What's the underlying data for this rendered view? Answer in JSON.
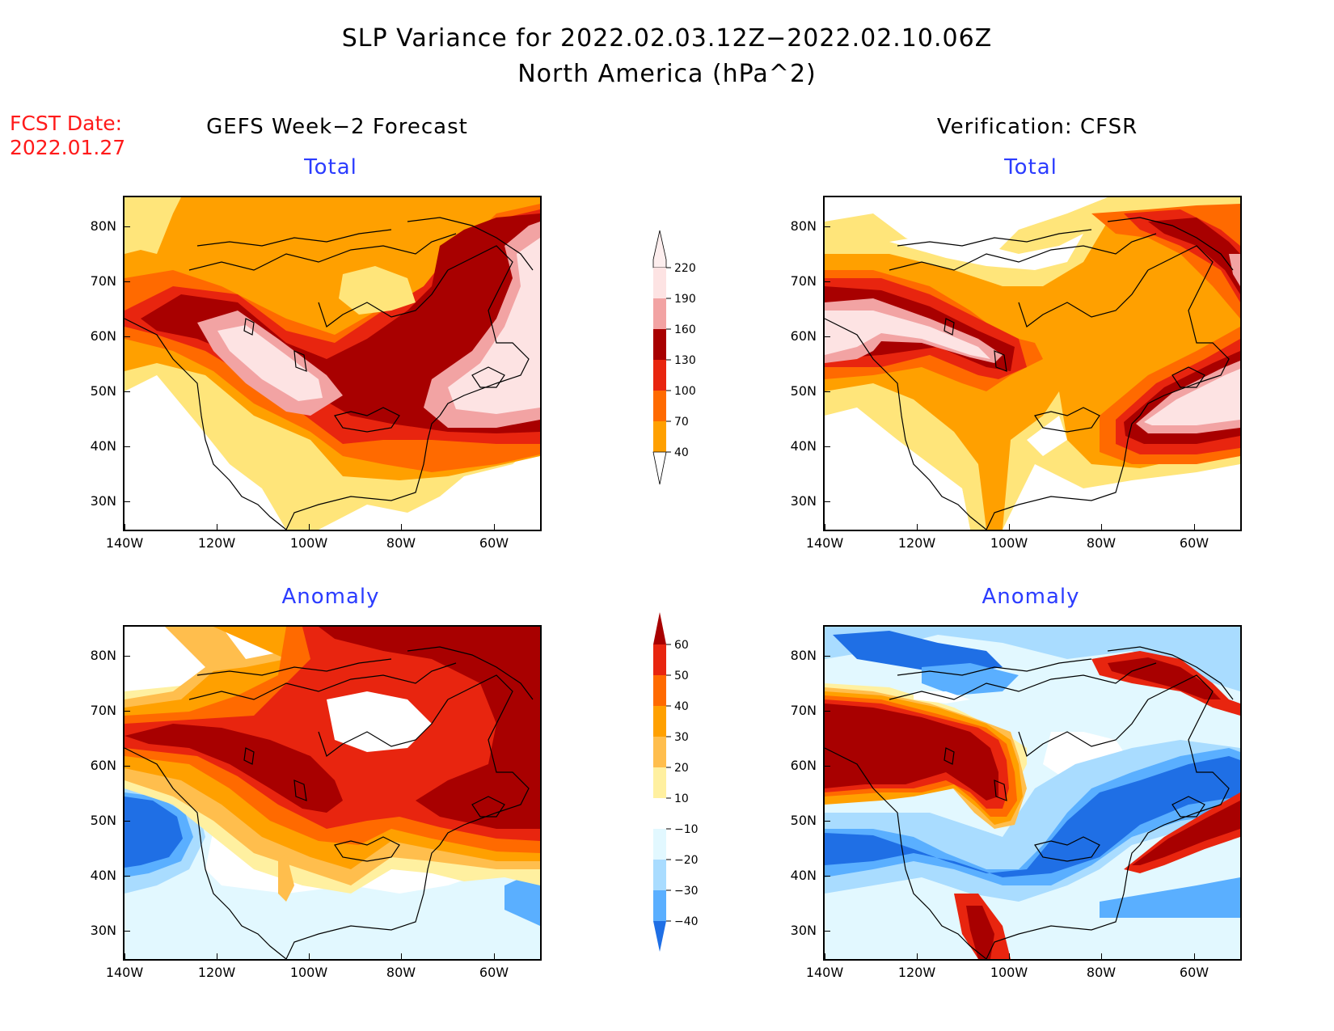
{
  "title": {
    "line1": "SLP Variance for 2022.02.03.12Z−2022.02.10.06Z",
    "line2": "North America (hPa^2)"
  },
  "fcst": {
    "label": "FCST Date:",
    "date": "2022.01.27"
  },
  "columns": {
    "left": "GEFS Week−2 Forecast",
    "right": "Verification: CFSR"
  },
  "panel_titles": {
    "total": "Total",
    "anomaly": "Anomaly"
  },
  "axes": {
    "lat_ticks": [
      "80N",
      "70N",
      "60N",
      "50N",
      "40N",
      "30N"
    ],
    "lon_ticks": [
      "140W",
      "120W",
      "100W",
      "80W",
      "60W"
    ]
  },
  "colorbars": {
    "total": {
      "levels": [
        "220",
        "190",
        "160",
        "130",
        "100",
        "70",
        "40"
      ],
      "colors": [
        "#fde3e3",
        "#f2a3a3",
        "#a80000",
        "#e8250f",
        "#ff6a00",
        "#ffa000",
        "#ffe57a"
      ]
    },
    "anomaly": {
      "levels": [
        "60",
        "50",
        "40",
        "30",
        "20",
        "10",
        "-10",
        "-20",
        "-30",
        "-40"
      ],
      "colors": [
        "#a80000",
        "#e8250f",
        "#ff6a00",
        "#ffa000",
        "#ffbe4d",
        "#fff0a0",
        "#ffffff",
        "#e2f8ff",
        "#a9dcff",
        "#5aafff",
        "#1f6fe5"
      ]
    }
  },
  "chart_data": {
    "type": "heatmap",
    "variable": "SLP Variance",
    "units": "hPa^2",
    "panels": [
      "GEFS Week−2 Forecast Total",
      "Verification: CFSR Total",
      "GEFS Week−2 Forecast Anomaly",
      "Verification: CFSR Anomaly"
    ],
    "lat_range": [
      "25N",
      "85N"
    ],
    "lon_range": [
      "140W",
      "50W"
    ]
  }
}
